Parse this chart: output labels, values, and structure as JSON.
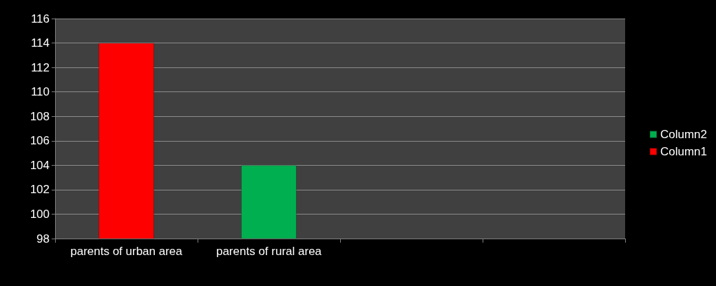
{
  "chart_data": {
    "type": "bar",
    "categories": [
      "parents of urban area",
      "parents of rural area",
      null,
      null
    ],
    "series": [
      {
        "name": "Column1",
        "color": "#ff0000",
        "values": [
          114,
          null,
          null,
          null
        ]
      },
      {
        "name": "Column2",
        "color": "#00b050",
        "values": [
          null,
          104,
          null,
          null
        ]
      }
    ],
    "stacked": true,
    "ylim": [
      98,
      116
    ],
    "yticks": [
      98,
      100,
      102,
      104,
      106,
      108,
      110,
      112,
      114,
      116
    ],
    "grid": "y",
    "legend": "right"
  }
}
